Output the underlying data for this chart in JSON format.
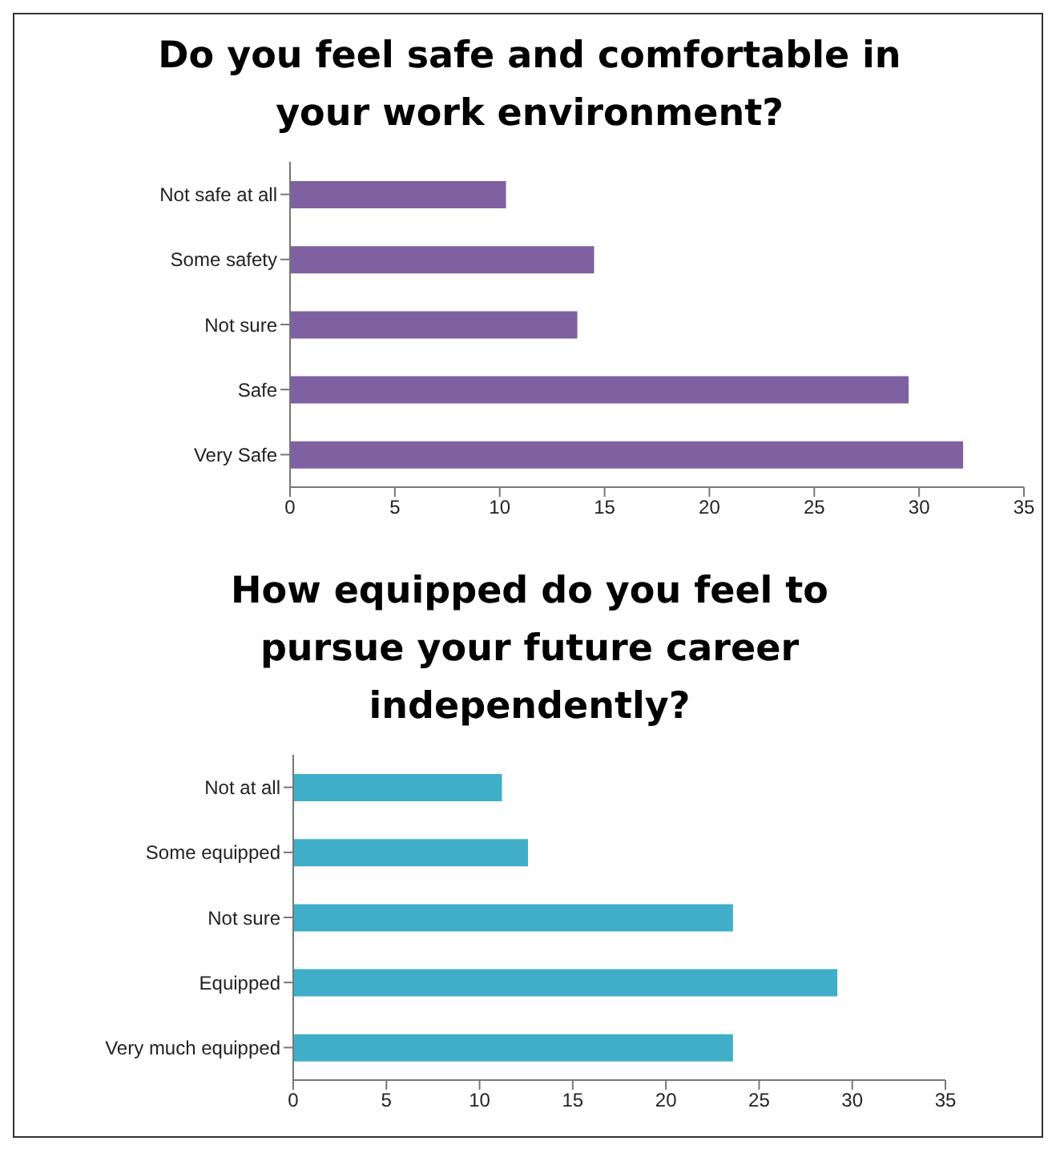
{
  "chart_data": [
    {
      "type": "bar",
      "orientation": "horizontal",
      "title": "Do you feel safe and comfortable in your work environment?",
      "categories": [
        "Not safe at all",
        "Some safety",
        "Not sure",
        "Safe",
        "Very Safe"
      ],
      "values": [
        10.3,
        14.5,
        13.7,
        29.5,
        32.1
      ],
      "color": "#7f60a0",
      "xlim": [
        0,
        35
      ],
      "xticks": [
        0,
        5,
        10,
        15,
        20,
        25,
        30,
        35
      ],
      "grid": false,
      "legend": false
    },
    {
      "type": "bar",
      "orientation": "horizontal",
      "title": "How equipped do you feel to pursue your future career independently?",
      "categories": [
        "Not at all",
        "Some equipped",
        "Not sure",
        "Equipped",
        "Very much equipped"
      ],
      "values": [
        11.2,
        12.6,
        23.6,
        29.2,
        23.6
      ],
      "color": "#40aec8",
      "xlim": [
        0,
        35
      ],
      "xticks": [
        0,
        5,
        10,
        15,
        20,
        25,
        30,
        35
      ],
      "grid": false,
      "legend": false
    }
  ]
}
